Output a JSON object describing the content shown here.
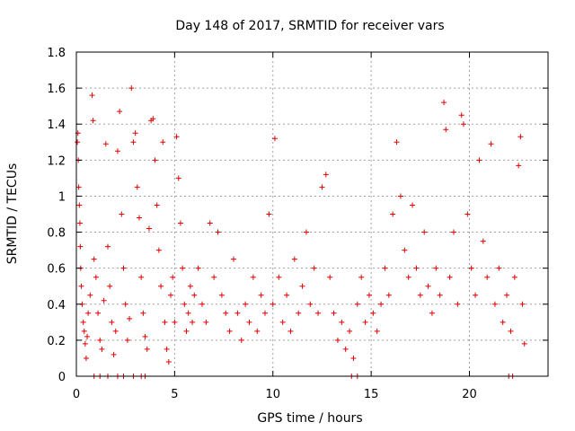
{
  "chart_data": {
    "type": "scatter",
    "title": "Day 148 of 2017, SRMTID for receiver vars",
    "xlabel": "GPS time / hours",
    "ylabel": "SRMTID / TECUs",
    "xlim": [
      0,
      24
    ],
    "ylim": [
      0,
      1.8
    ],
    "xticks": [
      0,
      5,
      10,
      15,
      20
    ],
    "xtick_labels": [
      "0",
      "5",
      "10",
      "15",
      "20"
    ],
    "yticks": [
      0,
      0.2,
      0.4,
      0.6,
      0.8,
      1.0,
      1.2,
      1.4,
      1.6,
      1.8
    ],
    "ytick_labels": [
      "0",
      "0.2",
      "0.4",
      "0.6",
      "0.8",
      "1",
      "1.2",
      "1.4",
      "1.6",
      "1.8"
    ],
    "grid": true,
    "marker": "+",
    "color": "#e00000",
    "series": [
      {
        "name": "SRMTID",
        "points": [
          [
            0.05,
            1.3
          ],
          [
            0.08,
            1.35
          ],
          [
            0.1,
            1.2
          ],
          [
            0.12,
            1.05
          ],
          [
            0.15,
            0.95
          ],
          [
            0.18,
            0.85
          ],
          [
            0.2,
            0.72
          ],
          [
            0.22,
            0.6
          ],
          [
            0.25,
            0.5
          ],
          [
            0.3,
            0.4
          ],
          [
            0.35,
            0.3
          ],
          [
            0.4,
            0.25
          ],
          [
            0.45,
            0.18
          ],
          [
            0.5,
            0.1
          ],
          [
            0.55,
            0.22
          ],
          [
            0.6,
            0.35
          ],
          [
            0.7,
            0.45
          ],
          [
            0.8,
            1.56
          ],
          [
            0.85,
            1.42
          ],
          [
            0.9,
            0.65
          ],
          [
            1.0,
            0.55
          ],
          [
            1.1,
            0.35
          ],
          [
            1.2,
            0.2
          ],
          [
            1.3,
            0.15
          ],
          [
            1.4,
            0.42
          ],
          [
            1.5,
            1.29
          ],
          [
            1.6,
            0.72
          ],
          [
            1.7,
            0.5
          ],
          [
            1.8,
            0.3
          ],
          [
            1.9,
            0.12
          ],
          [
            2.0,
            0.25
          ],
          [
            2.1,
            1.25
          ],
          [
            2.2,
            1.47
          ],
          [
            2.3,
            0.9
          ],
          [
            2.4,
            0.6
          ],
          [
            2.5,
            0.4
          ],
          [
            2.6,
            0.2
          ],
          [
            2.7,
            0.32
          ],
          [
            2.8,
            1.6
          ],
          [
            2.9,
            1.3
          ],
          [
            3.0,
            1.35
          ],
          [
            3.1,
            1.05
          ],
          [
            3.2,
            0.88
          ],
          [
            3.3,
            0.55
          ],
          [
            3.4,
            0.35
          ],
          [
            3.5,
            0.22
          ],
          [
            3.6,
            0.15
          ],
          [
            3.7,
            0.82
          ],
          [
            3.8,
            1.42
          ],
          [
            3.9,
            1.43
          ],
          [
            4.0,
            1.2
          ],
          [
            4.1,
            0.95
          ],
          [
            4.2,
            0.7
          ],
          [
            4.3,
            0.5
          ],
          [
            4.4,
            1.3
          ],
          [
            4.5,
            0.3
          ],
          [
            4.6,
            0.15
          ],
          [
            4.7,
            0.08
          ],
          [
            4.8,
            0.45
          ],
          [
            4.9,
            0.55
          ],
          [
            5.0,
            0.3
          ],
          [
            5.1,
            1.33
          ],
          [
            5.2,
            1.1
          ],
          [
            5.3,
            0.85
          ],
          [
            5.4,
            0.6
          ],
          [
            5.5,
            0.4
          ],
          [
            5.6,
            0.25
          ],
          [
            5.7,
            0.35
          ],
          [
            5.8,
            0.5
          ],
          [
            5.9,
            0.3
          ],
          [
            6.0,
            0.45
          ],
          [
            6.2,
            0.6
          ],
          [
            6.4,
            0.4
          ],
          [
            6.6,
            0.3
          ],
          [
            6.8,
            0.85
          ],
          [
            7.0,
            0.55
          ],
          [
            7.2,
            0.8
          ],
          [
            7.4,
            0.45
          ],
          [
            7.6,
            0.35
          ],
          [
            7.8,
            0.25
          ],
          [
            8.0,
            0.65
          ],
          [
            8.2,
            0.35
          ],
          [
            8.4,
            0.2
          ],
          [
            8.6,
            0.4
          ],
          [
            8.8,
            0.3
          ],
          [
            9.0,
            0.55
          ],
          [
            9.2,
            0.25
          ],
          [
            9.4,
            0.45
          ],
          [
            9.6,
            0.35
          ],
          [
            9.8,
            0.9
          ],
          [
            10.0,
            0.4
          ],
          [
            10.1,
            1.32
          ],
          [
            10.3,
            0.55
          ],
          [
            10.5,
            0.3
          ],
          [
            10.7,
            0.45
          ],
          [
            10.9,
            0.25
          ],
          [
            11.1,
            0.65
          ],
          [
            11.3,
            0.35
          ],
          [
            11.5,
            0.5
          ],
          [
            11.7,
            0.8
          ],
          [
            11.9,
            0.4
          ],
          [
            12.1,
            0.6
          ],
          [
            12.3,
            0.35
          ],
          [
            12.5,
            1.05
          ],
          [
            12.7,
            1.12
          ],
          [
            12.9,
            0.55
          ],
          [
            13.1,
            0.35
          ],
          [
            13.3,
            0.2
          ],
          [
            13.5,
            0.3
          ],
          [
            13.7,
            0.15
          ],
          [
            13.9,
            0.25
          ],
          [
            14.1,
            0.1
          ],
          [
            14.3,
            0.4
          ],
          [
            14.5,
            0.55
          ],
          [
            14.7,
            0.3
          ],
          [
            14.9,
            0.45
          ],
          [
            15.1,
            0.35
          ],
          [
            15.3,
            0.25
          ],
          [
            15.5,
            0.4
          ],
          [
            15.7,
            0.6
          ],
          [
            15.9,
            0.45
          ],
          [
            16.1,
            0.9
          ],
          [
            16.3,
            1.3
          ],
          [
            16.5,
            1.0
          ],
          [
            16.7,
            0.7
          ],
          [
            16.9,
            0.55
          ],
          [
            17.1,
            0.95
          ],
          [
            17.3,
            0.6
          ],
          [
            17.5,
            0.45
          ],
          [
            17.7,
            0.8
          ],
          [
            17.9,
            0.5
          ],
          [
            18.1,
            0.35
          ],
          [
            18.3,
            0.6
          ],
          [
            18.5,
            0.45
          ],
          [
            18.7,
            1.52
          ],
          [
            18.8,
            1.37
          ],
          [
            19.0,
            0.55
          ],
          [
            19.2,
            0.8
          ],
          [
            19.4,
            0.4
          ],
          [
            19.6,
            1.45
          ],
          [
            19.7,
            1.4
          ],
          [
            19.9,
            0.9
          ],
          [
            20.1,
            0.6
          ],
          [
            20.3,
            0.45
          ],
          [
            20.5,
            1.2
          ],
          [
            20.7,
            0.75
          ],
          [
            20.9,
            0.55
          ],
          [
            21.1,
            1.29
          ],
          [
            21.3,
            0.4
          ],
          [
            21.5,
            0.6
          ],
          [
            21.7,
            0.3
          ],
          [
            21.9,
            0.45
          ],
          [
            22.1,
            0.25
          ],
          [
            22.3,
            0.55
          ],
          [
            22.5,
            1.17
          ],
          [
            22.6,
            1.33
          ],
          [
            22.7,
            0.4
          ],
          [
            22.8,
            0.18
          ]
        ],
        "baseline_points_x": [
          0.9,
          1.2,
          1.6,
          2.1,
          2.4,
          2.9,
          3.3,
          3.5,
          14.0,
          14.3,
          22.0,
          22.2
        ]
      }
    ]
  }
}
